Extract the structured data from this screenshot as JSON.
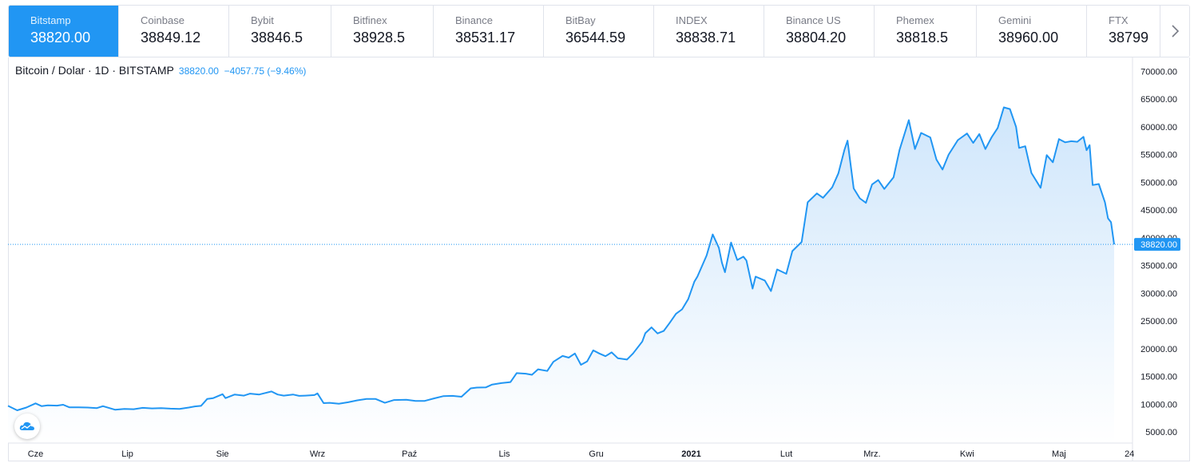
{
  "tabs": [
    {
      "name": "Bitstamp",
      "price": "38820.00",
      "active": true
    },
    {
      "name": "Coinbase",
      "price": "38849.12"
    },
    {
      "name": "Bybit",
      "price": "38846.5"
    },
    {
      "name": "Bitfinex",
      "price": "38928.5"
    },
    {
      "name": "Binance",
      "price": "38531.17"
    },
    {
      "name": "BitBay",
      "price": "36544.59"
    },
    {
      "name": "INDEX",
      "price": "38838.71"
    },
    {
      "name": "Binance US",
      "price": "38804.20"
    },
    {
      "name": "Phemex",
      "price": "38818.5"
    },
    {
      "name": "Gemini",
      "price": "38960.00"
    },
    {
      "name": "FTX",
      "price": "38799"
    }
  ],
  "next_icon": "chevron-right-icon",
  "legend": {
    "symbol": "Bitcoin / Dolar · 1D · BITSTAMP",
    "last": "38820.00",
    "change": "−4057.75 (−9.46%)"
  },
  "colors": {
    "accent": "#2196f3",
    "line": "#2196f3",
    "area_top": "#cfe6fb",
    "area_bottom": "#ffffff",
    "text": "#131722",
    "muted": "#787b86",
    "border": "#e0e3eb"
  },
  "logo_icon": "tradingview-cloud-icon",
  "chart_data": {
    "type": "area",
    "title": "Bitcoin / Dolar · 1D · BITSTAMP",
    "y_axis_position": "right",
    "grid": false,
    "ylim": [
      3000,
      72500
    ],
    "yticks": [
      5000,
      10000,
      15000,
      20000,
      25000,
      30000,
      35000,
      40000,
      45000,
      50000,
      55000,
      60000,
      65000,
      70000
    ],
    "ytick_labels": [
      "5000.00",
      "10000.00",
      "15000.00",
      "20000.00",
      "25000.00",
      "30000.00",
      "35000.00",
      "40000.00",
      "45000.00",
      "50000.00",
      "55000.00",
      "60000.00",
      "65000.00",
      "70000.00"
    ],
    "xlim": [
      "2020-05-23",
      "2021-05-25"
    ],
    "xticks": [
      {
        "date": "2020-06-01",
        "label": "Cze"
      },
      {
        "date": "2020-07-01",
        "label": "Lip"
      },
      {
        "date": "2020-08-01",
        "label": "Sie"
      },
      {
        "date": "2020-09-01",
        "label": "Wrz"
      },
      {
        "date": "2020-10-01",
        "label": "Paź"
      },
      {
        "date": "2020-11-01",
        "label": "Lis"
      },
      {
        "date": "2020-12-01",
        "label": "Gru"
      },
      {
        "date": "2021-01-01",
        "label": "2021",
        "bold": true
      },
      {
        "date": "2021-02-01",
        "label": "Lut"
      },
      {
        "date": "2021-03-01",
        "label": "Mrz."
      },
      {
        "date": "2021-04-01",
        "label": "Kwi"
      },
      {
        "date": "2021-05-01",
        "label": "Maj"
      },
      {
        "date": "2021-05-24",
        "label": "24"
      }
    ],
    "last_price": 38820,
    "last_price_label": "38820.00",
    "series": [
      {
        "values": [
          [
            "2020-05-23",
            9700
          ],
          [
            "2020-05-26",
            8900
          ],
          [
            "2020-05-29",
            9400
          ],
          [
            "2020-06-01",
            10150
          ],
          [
            "2020-06-03",
            9650
          ],
          [
            "2020-06-05",
            9800
          ],
          [
            "2020-06-08",
            9750
          ],
          [
            "2020-06-10",
            9900
          ],
          [
            "2020-06-12",
            9450
          ],
          [
            "2020-06-15",
            9450
          ],
          [
            "2020-06-18",
            9400
          ],
          [
            "2020-06-21",
            9300
          ],
          [
            "2020-06-23",
            9650
          ],
          [
            "2020-06-27",
            9000
          ],
          [
            "2020-06-30",
            9150
          ],
          [
            "2020-07-03",
            9100
          ],
          [
            "2020-07-06",
            9350
          ],
          [
            "2020-07-09",
            9250
          ],
          [
            "2020-07-12",
            9300
          ],
          [
            "2020-07-15",
            9200
          ],
          [
            "2020-07-18",
            9150
          ],
          [
            "2020-07-21",
            9400
          ],
          [
            "2020-07-23",
            9600
          ],
          [
            "2020-07-25",
            9700
          ],
          [
            "2020-07-27",
            10950
          ],
          [
            "2020-07-29",
            11100
          ],
          [
            "2020-08-01",
            11800
          ],
          [
            "2020-08-02",
            11100
          ],
          [
            "2020-08-05",
            11750
          ],
          [
            "2020-08-08",
            11550
          ],
          [
            "2020-08-10",
            11900
          ],
          [
            "2020-08-13",
            11750
          ],
          [
            "2020-08-17",
            12300
          ],
          [
            "2020-08-19",
            11750
          ],
          [
            "2020-08-21",
            11550
          ],
          [
            "2020-08-24",
            11750
          ],
          [
            "2020-08-26",
            11500
          ],
          [
            "2020-08-28",
            11550
          ],
          [
            "2020-08-31",
            11650
          ],
          [
            "2020-09-01",
            11950
          ],
          [
            "2020-09-03",
            10200
          ],
          [
            "2020-09-05",
            10250
          ],
          [
            "2020-09-08",
            10100
          ],
          [
            "2020-09-11",
            10350
          ],
          [
            "2020-09-14",
            10700
          ],
          [
            "2020-09-17",
            10950
          ],
          [
            "2020-09-20",
            10950
          ],
          [
            "2020-09-23",
            10250
          ],
          [
            "2020-09-26",
            10750
          ],
          [
            "2020-09-30",
            10800
          ],
          [
            "2020-10-03",
            10600
          ],
          [
            "2020-10-06",
            10600
          ],
          [
            "2020-10-09",
            11050
          ],
          [
            "2020-10-12",
            11450
          ],
          [
            "2020-10-15",
            11500
          ],
          [
            "2020-10-18",
            11350
          ],
          [
            "2020-10-21",
            12850
          ],
          [
            "2020-10-23",
            13000
          ],
          [
            "2020-10-26",
            13050
          ],
          [
            "2020-10-28",
            13550
          ],
          [
            "2020-10-31",
            13800
          ],
          [
            "2020-11-03",
            14000
          ],
          [
            "2020-11-05",
            15600
          ],
          [
            "2020-11-08",
            15500
          ],
          [
            "2020-11-10",
            15300
          ],
          [
            "2020-11-12",
            16300
          ],
          [
            "2020-11-15",
            16000
          ],
          [
            "2020-11-17",
            17650
          ],
          [
            "2020-11-20",
            18700
          ],
          [
            "2020-11-22",
            18400
          ],
          [
            "2020-11-24",
            19150
          ],
          [
            "2020-11-26",
            17100
          ],
          [
            "2020-11-28",
            17700
          ],
          [
            "2020-11-30",
            19700
          ],
          [
            "2020-12-02",
            19150
          ],
          [
            "2020-12-04",
            18650
          ],
          [
            "2020-12-06",
            19350
          ],
          [
            "2020-12-08",
            18300
          ],
          [
            "2020-12-11",
            18050
          ],
          [
            "2020-12-13",
            19150
          ],
          [
            "2020-12-16",
            21300
          ],
          [
            "2020-12-17",
            22800
          ],
          [
            "2020-12-19",
            23850
          ],
          [
            "2020-12-21",
            22750
          ],
          [
            "2020-12-23",
            23200
          ],
          [
            "2020-12-25",
            24700
          ],
          [
            "2020-12-27",
            26300
          ],
          [
            "2020-12-29",
            27100
          ],
          [
            "2020-12-31",
            28950
          ],
          [
            "2021-01-02",
            32100
          ],
          [
            "2021-01-03",
            33000
          ],
          [
            "2021-01-06",
            36800
          ],
          [
            "2021-01-08",
            40600
          ],
          [
            "2021-01-10",
            38200
          ],
          [
            "2021-01-11",
            35500
          ],
          [
            "2021-01-12",
            33800
          ],
          [
            "2021-01-14",
            39150
          ],
          [
            "2021-01-16",
            36000
          ],
          [
            "2021-01-18",
            36600
          ],
          [
            "2021-01-19",
            35900
          ],
          [
            "2021-01-21",
            30850
          ],
          [
            "2021-01-22",
            33000
          ],
          [
            "2021-01-25",
            32300
          ],
          [
            "2021-01-27",
            30400
          ],
          [
            "2021-01-29",
            34300
          ],
          [
            "2021-02-01",
            33500
          ],
          [
            "2021-02-03",
            37600
          ],
          [
            "2021-02-06",
            39250
          ],
          [
            "2021-02-08",
            46400
          ],
          [
            "2021-02-11",
            48000
          ],
          [
            "2021-02-13",
            47200
          ],
          [
            "2021-02-16",
            49100
          ],
          [
            "2021-02-18",
            51600
          ],
          [
            "2021-02-20",
            55900
          ],
          [
            "2021-02-21",
            57500
          ],
          [
            "2021-02-23",
            48900
          ],
          [
            "2021-02-25",
            47100
          ],
          [
            "2021-02-27",
            46300
          ],
          [
            "2021-03-01",
            49600
          ],
          [
            "2021-03-03",
            50400
          ],
          [
            "2021-03-05",
            48800
          ],
          [
            "2021-03-08",
            50900
          ],
          [
            "2021-03-10",
            55900
          ],
          [
            "2021-03-13",
            61200
          ],
          [
            "2021-03-15",
            56000
          ],
          [
            "2021-03-17",
            58900
          ],
          [
            "2021-03-20",
            58100
          ],
          [
            "2021-03-22",
            54100
          ],
          [
            "2021-03-24",
            52300
          ],
          [
            "2021-03-26",
            55000
          ],
          [
            "2021-03-29",
            57600
          ],
          [
            "2021-04-01",
            58800
          ],
          [
            "2021-04-03",
            57100
          ],
          [
            "2021-04-05",
            58700
          ],
          [
            "2021-04-07",
            56000
          ],
          [
            "2021-04-09",
            58100
          ],
          [
            "2021-04-11",
            59800
          ],
          [
            "2021-04-13",
            63500
          ],
          [
            "2021-04-15",
            63200
          ],
          [
            "2021-04-17",
            60000
          ],
          [
            "2021-04-18",
            56200
          ],
          [
            "2021-04-20",
            56500
          ],
          [
            "2021-04-22",
            51700
          ],
          [
            "2021-04-25",
            49000
          ],
          [
            "2021-04-27",
            54900
          ],
          [
            "2021-04-29",
            53600
          ],
          [
            "2021-05-01",
            57800
          ],
          [
            "2021-05-03",
            57200
          ],
          [
            "2021-05-05",
            57400
          ],
          [
            "2021-05-07",
            57300
          ],
          [
            "2021-05-09",
            58200
          ],
          [
            "2021-05-10",
            55800
          ],
          [
            "2021-05-11",
            56700
          ],
          [
            "2021-05-12",
            49500
          ],
          [
            "2021-05-14",
            49700
          ],
          [
            "2021-05-16",
            46400
          ],
          [
            "2021-05-17",
            43500
          ],
          [
            "2021-05-18",
            42800
          ],
          [
            "2021-05-19",
            38820
          ]
        ]
      }
    ]
  }
}
